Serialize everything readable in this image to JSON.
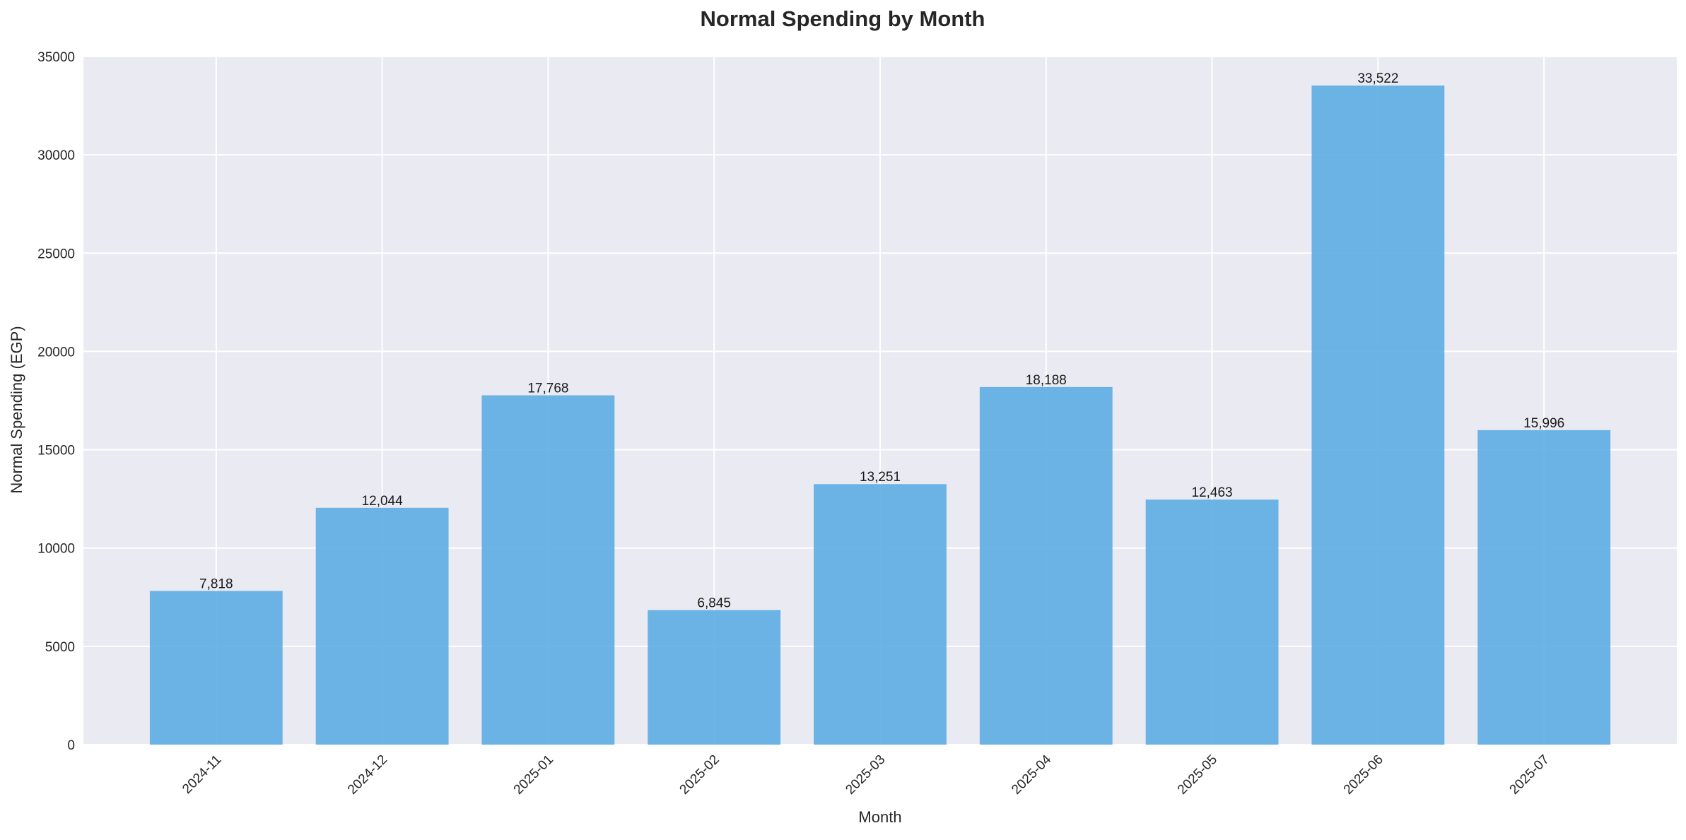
{
  "chart_data": {
    "type": "bar",
    "title": "Normal Spending by Month",
    "xlabel": "Month",
    "ylabel": "Normal Spending (EGP)",
    "categories": [
      "2024-11",
      "2024-12",
      "2025-01",
      "2025-02",
      "2025-03",
      "2025-04",
      "2025-05",
      "2025-06",
      "2025-07"
    ],
    "values": [
      7818,
      12044,
      17768,
      6845,
      13251,
      18188,
      12463,
      33522,
      15996
    ],
    "value_labels": [
      "7,818",
      "12,044",
      "17,768",
      "6,845",
      "13,251",
      "18,188",
      "12,463",
      "33,522",
      "15,996"
    ],
    "ylim": [
      0,
      35000
    ],
    "yticks": [
      0,
      5000,
      10000,
      15000,
      20000,
      25000,
      30000,
      35000
    ],
    "ytick_labels": [
      "0",
      "5000",
      "10000",
      "15000",
      "20000",
      "25000",
      "30000",
      "35000"
    ],
    "grid": true,
    "bar_color": "#5dade2",
    "background_color": "#eaeaf2"
  }
}
